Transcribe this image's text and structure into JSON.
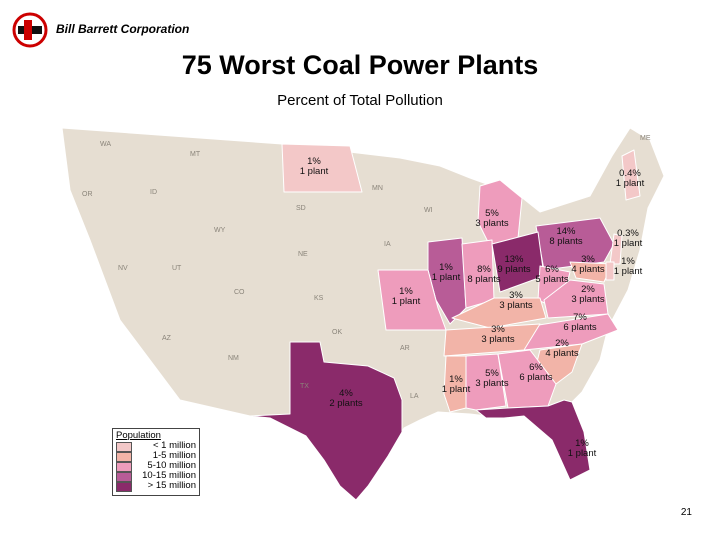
{
  "header": {
    "company": "Bill Barrett Corporation",
    "title": "75 Worst Coal Power Plants",
    "subtitle": "Percent of Total Pollution"
  },
  "colors": {
    "base": "#e6ded2",
    "lt1": "#f3c8c8",
    "m1_5": "#f2b4a8",
    "m5_10": "#ee9cbc",
    "m10_15": "#b85c97",
    "gt15": "#8a2a6a"
  },
  "map_labels": {
    "nd": "1%\n1 plant",
    "nh": "0.4%\n1 plant",
    "mi": "5%\n3 plants",
    "pa": "14%\n8 plants",
    "nj": "0.3%\n1 plant",
    "oh": "13%\n9 plants",
    "md": "3%\n4 plants",
    "de": "1%\n1 plant",
    "il_w": "1%\n1 plant",
    "in": "8%\n8 plants",
    "wv": "6%\n5 plants",
    "va": "2%\n3 plants",
    "mo": "1%\n1 plant",
    "ky": "3%\n3 plants",
    "nc": "7%\n6 plants",
    "tn": "3%\n3 plants",
    "sc": "2%\n4 plants",
    "tx": "4%\n2 plants",
    "ms": "1%\n1 plant",
    "al": "5%\n3 plants",
    "ga": "6%\n6 plants",
    "fl": "1%\n1 plant"
  },
  "legend": {
    "title": "Population",
    "items": [
      {
        "label": "< 1 million",
        "color": "#f3c8c8"
      },
      {
        "label": "1-5 million",
        "color": "#f2b4a8"
      },
      {
        "label": "5-10 million",
        "color": "#ee9cbc"
      },
      {
        "label": "10-15 million",
        "color": "#b85c97"
      },
      {
        "label": "> 15 million",
        "color": "#8a2a6a"
      }
    ]
  },
  "state_abbr": [
    "WA",
    "OR",
    "ID",
    "MT",
    "WY",
    "NV",
    "UT",
    "CO",
    "AZ",
    "NM",
    "KS",
    "NE",
    "SD",
    "MN",
    "IA",
    "WI",
    "OK",
    "AR",
    "LA",
    "TX",
    "ME"
  ],
  "page_number": "21"
}
